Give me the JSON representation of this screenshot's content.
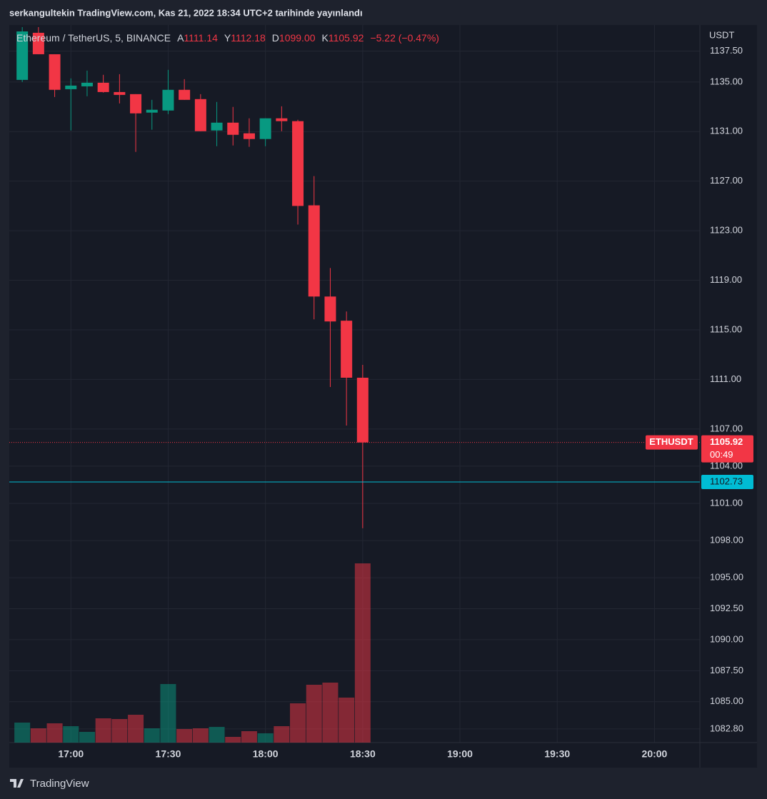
{
  "header": "serkangultekin TradingView.com, Kas 21, 2022 18:34 UTC+2 tarihinde yayınlandı",
  "footer": "TradingView",
  "chart_data": {
    "type": "candlestick",
    "legend": {
      "symbol": "Ethereum / TetherUS, 5, BINANCE",
      "ohlc": [
        {
          "key": "A",
          "value": "1111.14"
        },
        {
          "key": "Y",
          "value": "1112.18"
        },
        {
          "key": "D",
          "value": "1099.00"
        },
        {
          "key": "K",
          "value": "1105.92"
        }
      ],
      "change": "−5.22 (−0.47%)"
    },
    "currency": "USDT",
    "x": [
      "16:45",
      "16:50",
      "16:55",
      "17:00",
      "17:05",
      "17:10",
      "17:15",
      "17:20",
      "17:25",
      "17:30",
      "17:35",
      "17:40",
      "17:45",
      "17:50",
      "17:55",
      "18:00",
      "18:05",
      "18:10",
      "18:15",
      "18:20",
      "18:25",
      "18:30"
    ],
    "open": [
      1135.17,
      1138.97,
      1137.24,
      1134.42,
      1134.65,
      1134.94,
      1134.19,
      1134.02,
      1132.53,
      1132.7,
      1134.37,
      1133.62,
      1131.09,
      1131.72,
      1130.86,
      1130.4,
      1132.07,
      1131.84,
      1125.05,
      1117.69,
      1115.74,
      1111.14
    ],
    "high": [
      1139.43,
      1139.43,
      1137.24,
      1135.29,
      1135.92,
      1135.58,
      1135.63,
      1134.02,
      1133.56,
      1135.98,
      1135.23,
      1134.02,
      1133.39,
      1132.99,
      1132.07,
      1132.07,
      1133.04,
      1131.95,
      1127.41,
      1119.99,
      1116.48,
      1112.18
    ],
    "low": [
      1135.0,
      1137.24,
      1133.79,
      1131.09,
      1133.85,
      1134.14,
      1133.27,
      1129.36,
      1131.15,
      1132.41,
      1133.56,
      1131.03,
      1129.82,
      1129.88,
      1129.77,
      1129.82,
      1131.03,
      1123.5,
      1115.85,
      1110.39,
      1107.28,
      1099.0
    ],
    "close": [
      1139.08,
      1137.24,
      1134.37,
      1134.71,
      1134.94,
      1134.19,
      1133.96,
      1132.47,
      1132.76,
      1134.37,
      1133.56,
      1131.03,
      1131.72,
      1130.74,
      1130.4,
      1132.07,
      1131.84,
      1125.0,
      1117.69,
      1115.68,
      1111.14,
      1105.92
    ],
    "volume": [
      28,
      20,
      27,
      23,
      15,
      34,
      33,
      39,
      20,
      82,
      19,
      20,
      22,
      8,
      16,
      13,
      23,
      55,
      81,
      84,
      63,
      251
    ],
    "up_color": "#089981",
    "down_color": "#f23645",
    "xlim": [
      "16:41",
      "20:14"
    ],
    "xticks": [
      "17:00",
      "17:30",
      "18:00",
      "18:30",
      "19:00",
      "19:30",
      "20:00"
    ],
    "ylim": [
      1081.7,
      1139.6
    ],
    "yticks": [
      {
        "value": 1137.5,
        "label": "1137.50"
      },
      {
        "value": 1135,
        "label": "1135.00"
      },
      {
        "value": 1131,
        "label": "1131.00"
      },
      {
        "value": 1127,
        "label": "1127.00"
      },
      {
        "value": 1123,
        "label": "1123.00"
      },
      {
        "value": 1119,
        "label": "1119.00"
      },
      {
        "value": 1115,
        "label": "1115.00"
      },
      {
        "value": 1111,
        "label": "1111.00"
      },
      {
        "value": 1107,
        "label": "1107.00"
      },
      {
        "value": 1104,
        "label": "1104.00"
      },
      {
        "value": 1101,
        "label": "1101.00"
      },
      {
        "value": 1098,
        "label": "1098.00"
      },
      {
        "value": 1095,
        "label": "1095.00"
      },
      {
        "value": 1092.5,
        "label": "1092.50"
      },
      {
        "value": 1090,
        "label": "1090.00"
      },
      {
        "value": 1087.5,
        "label": "1087.50"
      },
      {
        "value": 1085,
        "label": "1085.00"
      },
      {
        "value": 1082.8,
        "label": "1082.80"
      }
    ],
    "grid": true,
    "price_line": {
      "value": 1105.92,
      "symbol": "ETHUSDT",
      "countdown": "00:49"
    },
    "level_line": {
      "value": 1102.73,
      "color": "#00bcd4"
    }
  }
}
